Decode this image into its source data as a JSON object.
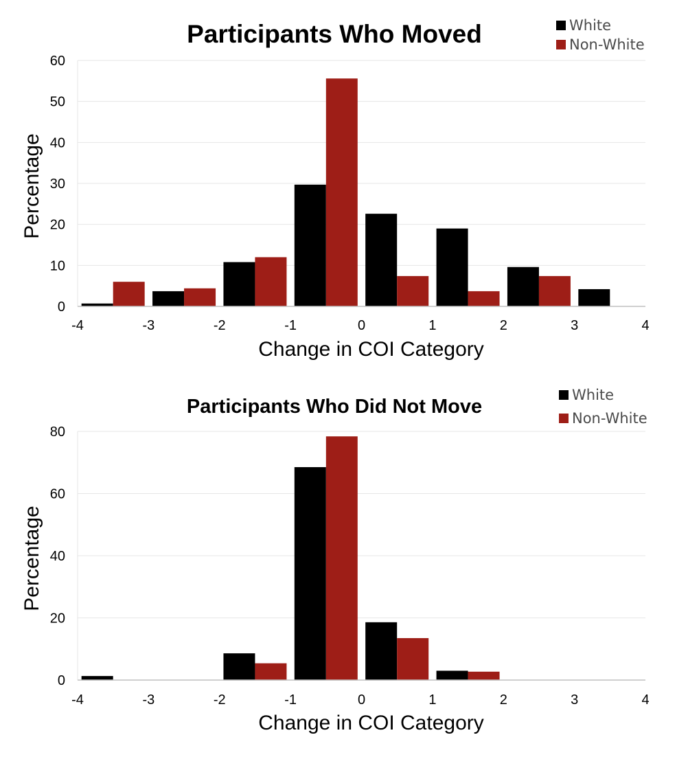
{
  "colors": {
    "white_series": "#000000",
    "nonwhite_series": "#9e1e17",
    "grid": "#e6e6e6",
    "axis": "#bfbfbf"
  },
  "chart_data": [
    {
      "type": "bar",
      "title": "Participants Who Moved",
      "xlabel": "Change in COI Category",
      "ylabel": "Percentage",
      "ylim": [
        0,
        60
      ],
      "yticks": [
        "0",
        "10",
        "20",
        "30",
        "40",
        "50",
        "60"
      ],
      "xlim": [
        -4,
        4
      ],
      "xticks": [
        "-4",
        "-3",
        "-2",
        "-1",
        "0",
        "1",
        "2",
        "3",
        "4"
      ],
      "categories": [
        -3,
        -2,
        -1,
        0,
        1,
        2,
        3,
        4
      ],
      "series": [
        {
          "name": "White",
          "values": [
            0.7,
            3.7,
            10.8,
            29.7,
            22.6,
            19.0,
            9.6,
            4.2
          ]
        },
        {
          "name": "Non-White",
          "values": [
            6.0,
            4.4,
            12.0,
            55.6,
            7.4,
            3.7,
            7.4,
            0
          ]
        }
      ],
      "legend": [
        "White",
        "Non-White"
      ],
      "legend_position": "top-right",
      "grid": true
    },
    {
      "type": "bar",
      "title": "Participants Who Did Not Move",
      "xlabel": "Change in COI Category",
      "ylabel": "Percentage",
      "ylim": [
        0,
        80
      ],
      "yticks": [
        "0",
        "20",
        "40",
        "60",
        "80"
      ],
      "xlim": [
        -4,
        4
      ],
      "xticks": [
        "-4",
        "-3",
        "-2",
        "-1",
        "0",
        "1",
        "2",
        "3",
        "4"
      ],
      "categories": [
        -3,
        -2,
        -1,
        0,
        1,
        2,
        3,
        4
      ],
      "series": [
        {
          "name": "White",
          "values": [
            1.3,
            0,
            8.6,
            68.5,
            18.6,
            3.0,
            0,
            0
          ]
        },
        {
          "name": "Non-White",
          "values": [
            0,
            0,
            5.4,
            78.4,
            13.5,
            2.7,
            0,
            0
          ]
        }
      ],
      "legend": [
        "White",
        "Non-White"
      ],
      "legend_position": "top-right",
      "grid": true
    }
  ]
}
